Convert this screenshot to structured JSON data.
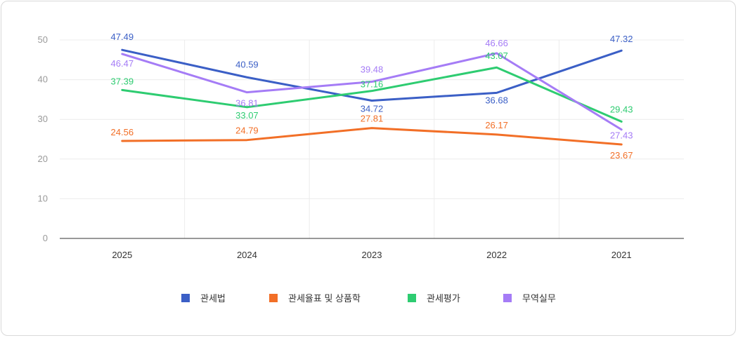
{
  "chart_data": {
    "type": "line",
    "title": "",
    "xlabel": "",
    "ylabel": "",
    "categories": [
      "2025",
      "2024",
      "2023",
      "2022",
      "2021"
    ],
    "ylim": [
      0,
      50
    ],
    "yticks": [
      "0",
      "10",
      "20",
      "30",
      "40",
      "50"
    ],
    "grid": true,
    "legend_position": "bottom-center",
    "series": [
      {
        "name": "관세법",
        "color": "#3b5fc6",
        "values": [
          47.49,
          40.59,
          34.72,
          36.68,
          47.32
        ],
        "labels": [
          "47.49",
          "40.59",
          "34.72",
          "36.68",
          "47.32"
        ]
      },
      {
        "name": "관세율표 및 상품학",
        "color": "#f26f27",
        "values": [
          24.56,
          24.79,
          27.81,
          26.17,
          23.67
        ],
        "labels": [
          "24.56",
          "24.79",
          "27.81",
          "26.17",
          "23.67"
        ]
      },
      {
        "name": "관세평가",
        "color": "#2ecc71",
        "values": [
          37.39,
          33.07,
          37.16,
          43.07,
          29.43
        ],
        "labels": [
          "37.39",
          "33.07",
          "37.16",
          "43.07",
          "29.43"
        ]
      },
      {
        "name": "무역실무",
        "color": "#a57cf6",
        "values": [
          46.47,
          36.81,
          39.48,
          46.66,
          27.43
        ],
        "labels": [
          "46.47",
          "36.81",
          "39.48",
          "46.66",
          "27.43"
        ]
      }
    ]
  }
}
